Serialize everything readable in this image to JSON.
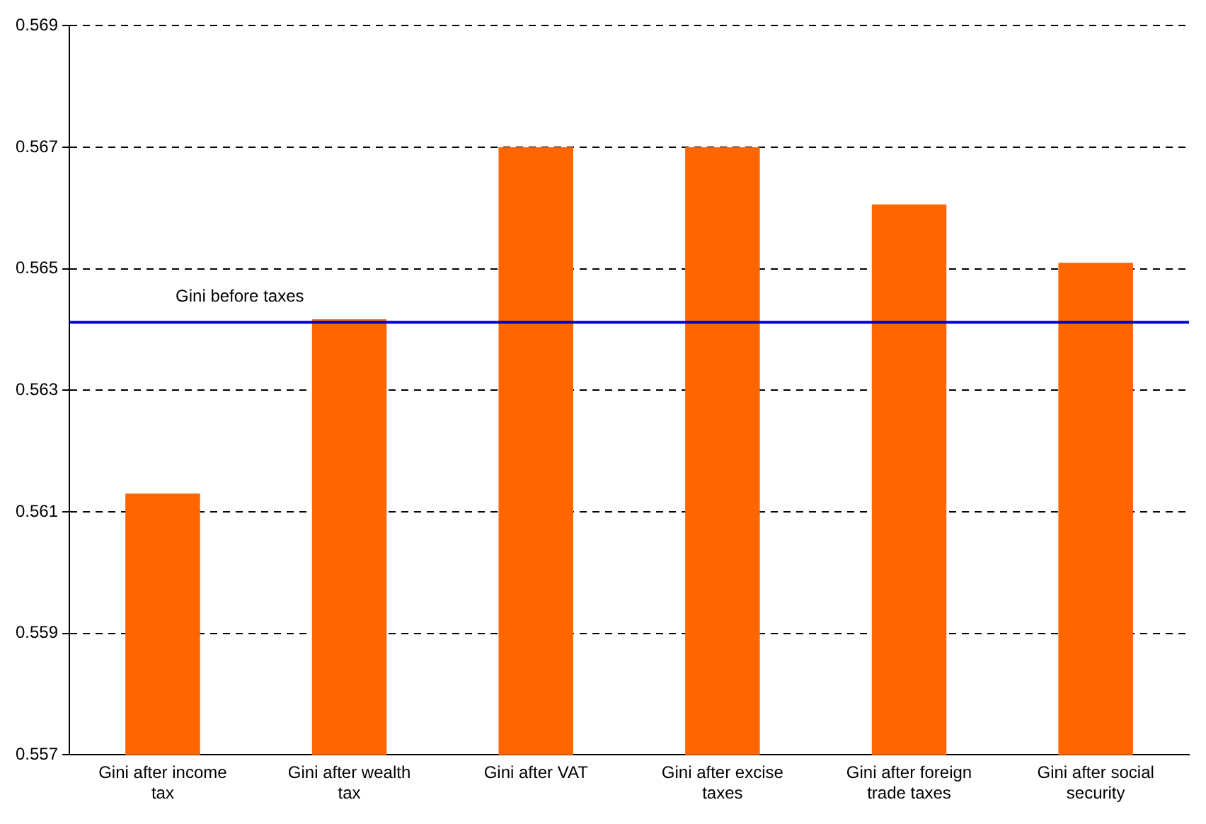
{
  "chart_data": {
    "type": "bar",
    "categories": [
      "Gini after income tax",
      "Gini after wealth tax",
      "Gini after VAT",
      "Gini after excise taxes",
      "Gini after foreign trade taxes",
      "Gini after social security"
    ],
    "values": [
      0.5613,
      0.56417,
      0.567,
      0.567,
      0.56606,
      0.5651
    ],
    "color": "#ff6600",
    "ylim": [
      0.557,
      0.569
    ],
    "yticks": [
      0.557,
      0.559,
      0.561,
      0.563,
      0.565,
      0.567,
      0.569
    ],
    "grid": "y",
    "legend": false,
    "ref_lines": [
      {
        "axis": "y",
        "value": 0.56412,
        "label": "Gini before taxes",
        "color": "#0000cc",
        "line_style": "solid"
      }
    ]
  }
}
